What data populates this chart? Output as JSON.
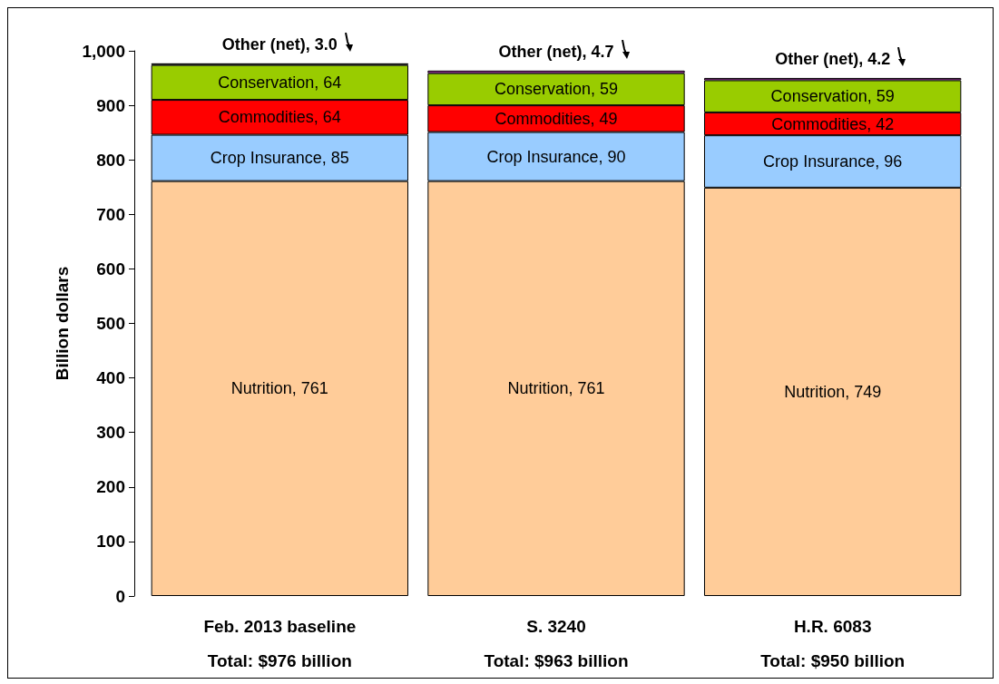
{
  "chart_data": {
    "type": "bar",
    "stacked": true,
    "ylabel": "Billion dollars",
    "categories": [
      "Feb. 2013 baseline",
      "S. 3240",
      "H.R. 6083"
    ],
    "annotations": [
      "Total: $976 billion",
      "Total: $963 billion",
      "Total: $950 billion"
    ],
    "series": [
      {
        "color": "#ffcc99",
        "values": [
          761,
          761,
          749
        ],
        "value_labels": [
          "Nutrition, 761",
          "Nutrition, 761",
          "Nutrition, 749"
        ]
      },
      {
        "color": "#99ccff",
        "values": [
          85,
          90,
          96
        ],
        "value_labels": [
          "Crop Insurance, 85",
          "Crop Insurance, 90",
          "Crop Insurance, 96"
        ]
      },
      {
        "color": "#ff0000",
        "values": [
          64,
          49,
          42
        ],
        "value_labels": [
          "Commodities, 64",
          "Commodities, 49",
          "Commodities, 42"
        ]
      },
      {
        "color": "#99cc00",
        "values": [
          64,
          59,
          59
        ],
        "value_labels": [
          "Conservation, 64",
          "Conservation, 59",
          "Conservation, 59"
        ]
      },
      {
        "colors": [
          "#000000",
          "#cc33cc",
          "#cc33cc"
        ],
        "values": [
          3.0,
          4.7,
          4.2
        ],
        "value_labels": [
          "Other (net), 3.0",
          "Other (net), 4.7",
          "Other (net), 4.2"
        ]
      }
    ],
    "ylim": [
      0,
      1000
    ],
    "yticks": [
      0,
      100,
      200,
      300,
      400,
      500,
      600,
      700,
      800,
      900,
      {
        "value": 1000,
        "label": "1,000"
      }
    ],
    "grid": false
  }
}
